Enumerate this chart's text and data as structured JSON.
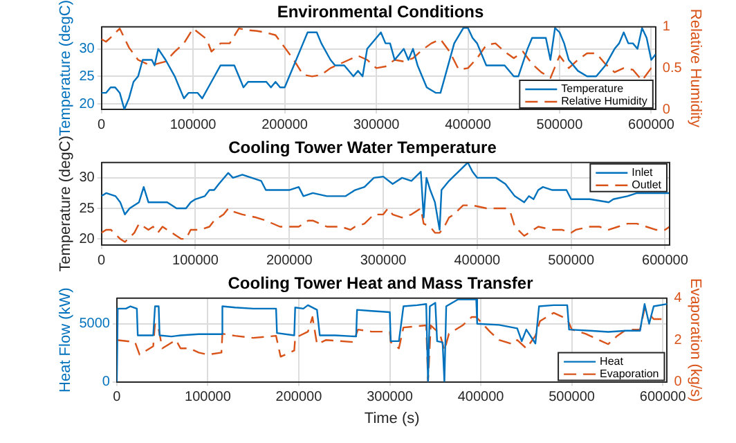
{
  "chart_data": [
    {
      "type": "line",
      "title": "Environmental Conditions",
      "ylabel": "Temperature (degC)",
      "y2label": "Relative Humidity",
      "xlim": [
        0,
        604800
      ],
      "xticks": [
        0,
        100000,
        200000,
        300000,
        400000,
        500000,
        600000
      ],
      "ylim": [
        19,
        34
      ],
      "yticks": [
        20,
        25,
        30
      ],
      "y2lim": [
        0,
        1
      ],
      "y2ticks": [
        0,
        0.5,
        1
      ],
      "grid": true,
      "legend": "bottom right",
      "series": [
        {
          "name": "Temperature",
          "color": "#0072bd",
          "line_style": "solid",
          "x": [
            0,
            5000,
            10000,
            15000,
            20000,
            25000,
            30000,
            35000,
            40000,
            45000,
            55000,
            58000,
            62000,
            70000,
            80000,
            85000,
            90000,
            95000,
            105000,
            110000,
            120000,
            130000,
            145000,
            150000,
            155000,
            160000,
            180000,
            185000,
            190000,
            195000,
            200000,
            210000,
            220000,
            225000,
            235000,
            240000,
            250000,
            255000,
            265000,
            275000,
            280000,
            285000,
            290000,
            300000,
            305000,
            310000,
            315000,
            320000,
            325000,
            330000,
            335000,
            340000,
            345000,
            355000,
            365000,
            370000,
            375000,
            385000,
            395000,
            400000,
            405000,
            410000,
            420000,
            440000,
            450000,
            455000,
            465000,
            470000,
            485000,
            490000,
            495000,
            500000,
            505000,
            510000,
            520000,
            530000,
            540000,
            550000,
            560000,
            565000,
            570000,
            575000,
            580000,
            585000,
            590000,
            595000,
            600000,
            604800
          ],
          "values": [
            22,
            22,
            23,
            23,
            22,
            19,
            21,
            24,
            25,
            28,
            28,
            27,
            30,
            28,
            25,
            23,
            21,
            22,
            22,
            21,
            24,
            27,
            27,
            25,
            23,
            24,
            24,
            23,
            24,
            23,
            23,
            27,
            31,
            33,
            33,
            31,
            28,
            27,
            27,
            25,
            26,
            25,
            30,
            32,
            33,
            31,
            31,
            28,
            29,
            30,
            28,
            30,
            27,
            23,
            22,
            22,
            25,
            31,
            33.8,
            33.8,
            32,
            31,
            27,
            27,
            25,
            25,
            30,
            32,
            32,
            28,
            33.8,
            33,
            31,
            28,
            26,
            25,
            25,
            27,
            30,
            31,
            33,
            31,
            31,
            30,
            33.8,
            32,
            28,
            29
          ]
        },
        {
          "name": "Relative Humidity",
          "color": "#d95319",
          "line_style": "dashed",
          "axis": "y2",
          "x": [
            0,
            5000,
            10000,
            20000,
            30000,
            40000,
            50000,
            60000,
            70000,
            80000,
            90000,
            100000,
            115000,
            120000,
            130000,
            140000,
            150000,
            160000,
            170000,
            180000,
            190000,
            200000,
            210000,
            220000,
            230000,
            240000,
            250000,
            260000,
            270000,
            280000,
            290000,
            300000,
            310000,
            320000,
            330000,
            340000,
            350000,
            360000,
            370000,
            380000,
            390000,
            400000,
            410000,
            420000,
            430000,
            440000,
            450000,
            460000,
            470000,
            480000,
            490000,
            500000,
            510000,
            520000,
            530000,
            540000,
            550000,
            560000,
            570000,
            580000,
            590000,
            600000,
            604800
          ],
          "values": [
            0.85,
            0.82,
            0.87,
            0.98,
            0.75,
            0.6,
            0.55,
            0.55,
            0.58,
            0.7,
            0.8,
            0.98,
            0.85,
            0.7,
            0.8,
            0.8,
            0.98,
            0.96,
            0.95,
            0.93,
            0.9,
            0.75,
            0.6,
            0.42,
            0.4,
            0.42,
            0.5,
            0.55,
            0.6,
            0.65,
            0.6,
            0.5,
            0.52,
            0.6,
            0.58,
            0.62,
            0.72,
            0.8,
            0.85,
            0.7,
            0.48,
            0.5,
            0.62,
            0.78,
            0.8,
            0.7,
            0.62,
            0.7,
            0.55,
            0.45,
            0.38,
            0.65,
            0.5,
            0.6,
            0.68,
            0.68,
            0.55,
            0.45,
            0.5,
            0.48,
            0.35,
            0.5,
            0.5
          ]
        }
      ]
    },
    {
      "type": "line",
      "title": "Cooling Tower Water Temperature",
      "ylabel": "Temperature (degC)",
      "xlim": [
        0,
        604800
      ],
      "xticks": [
        0,
        100000,
        200000,
        300000,
        400000,
        500000,
        600000
      ],
      "ylim": [
        19,
        32.5
      ],
      "yticks": [
        20,
        25,
        30
      ],
      "grid": true,
      "legend": "top right",
      "series": [
        {
          "name": "Inlet",
          "color": "#0072bd",
          "line_style": "solid",
          "x": [
            0,
            5000,
            15000,
            20000,
            25000,
            30000,
            40000,
            45000,
            50000,
            60000,
            70000,
            80000,
            90000,
            95000,
            100000,
            110000,
            115000,
            120000,
            125000,
            135000,
            140000,
            150000,
            160000,
            170000,
            175000,
            190000,
            200000,
            210000,
            215000,
            225000,
            240000,
            260000,
            270000,
            280000,
            290000,
            300000,
            310000,
            320000,
            330000,
            340000,
            343000,
            346000,
            350000,
            355000,
            360000,
            362000,
            370000,
            380000,
            390000,
            395000,
            400000,
            420000,
            430000,
            440000,
            450000,
            455000,
            460000,
            465000,
            470000,
            480000,
            495000,
            500000,
            520000,
            540000,
            545000,
            560000,
            570000,
            580000,
            590000,
            600000,
            604800
          ],
          "values": [
            27,
            27.5,
            27,
            26,
            24,
            25,
            26,
            28.5,
            26,
            26,
            26,
            25,
            25,
            26,
            26.5,
            27,
            28,
            28,
            29,
            30.8,
            30,
            30.5,
            30,
            29.5,
            28,
            28,
            28,
            28.5,
            27,
            27.5,
            27,
            27,
            28,
            28.5,
            30,
            30.2,
            29,
            30,
            29.5,
            31,
            23.5,
            30,
            28,
            26,
            21.5,
            28,
            29.5,
            31,
            32.5,
            31,
            30,
            30,
            29,
            27,
            26,
            27,
            26.5,
            28,
            28.5,
            28,
            28,
            26.5,
            26.5,
            26,
            26.5,
            27,
            27.5,
            27.5,
            27.5,
            27.5,
            27.5
          ]
        },
        {
          "name": "Outlet",
          "color": "#d95319",
          "line_style": "dashed",
          "x": [
            0,
            5000,
            10000,
            20000,
            25000,
            35000,
            40000,
            45000,
            50000,
            55000,
            60000,
            65000,
            75000,
            85000,
            90000,
            95000,
            105000,
            115000,
            120000,
            130000,
            135000,
            140000,
            150000,
            165000,
            175000,
            190000,
            210000,
            220000,
            225000,
            240000,
            255000,
            265000,
            270000,
            280000,
            290000,
            300000,
            305000,
            310000,
            320000,
            330000,
            340000,
            343000,
            350000,
            355000,
            360000,
            365000,
            370000,
            375000,
            385000,
            395000,
            410000,
            430000,
            435000,
            440000,
            450000,
            460000,
            465000,
            480000,
            490000,
            500000,
            505000,
            520000,
            530000,
            540000,
            550000,
            560000,
            570000,
            580000,
            590000,
            600000,
            604800
          ],
          "values": [
            21,
            21.5,
            21.5,
            20,
            19.5,
            21,
            22.5,
            22,
            21.5,
            22,
            21,
            22,
            21,
            20,
            20,
            21.5,
            21.5,
            22,
            23,
            24,
            25,
            24.5,
            24,
            23.5,
            23,
            22,
            22,
            23,
            23,
            22,
            22,
            21.5,
            22,
            22.5,
            24,
            24,
            25,
            24,
            23.5,
            24,
            25,
            22.5,
            22,
            21,
            21,
            22,
            23.5,
            24,
            25.5,
            25.5,
            25,
            25,
            24.5,
            22,
            20.5,
            21.5,
            22,
            21.5,
            21.5,
            21,
            21.5,
            22,
            22,
            21.5,
            22,
            22.5,
            22.5,
            22,
            21.5,
            21.5,
            22
          ]
        }
      ]
    },
    {
      "type": "line",
      "title": "Cooling Tower Heat and Mass Transfer",
      "xlabel": "Time (s)",
      "ylabel": "Heat Flow (kW)",
      "y2label": "Evaporation (kg/s)",
      "xlim": [
        0,
        604800
      ],
      "xticks": [
        0,
        100000,
        200000,
        300000,
        400000,
        500000,
        600000
      ],
      "ylim": [
        0,
        7200
      ],
      "yticks": [
        0,
        5000
      ],
      "y2lim": [
        0,
        4
      ],
      "y2ticks": [
        0,
        2,
        4
      ],
      "grid": true,
      "legend": "bottom right",
      "series": [
        {
          "name": "Heat",
          "color": "#0072bd",
          "line_style": "solid",
          "x": [
            0,
            1000,
            10000,
            15000,
            22000,
            23000,
            40000,
            42000,
            46000,
            47000,
            60000,
            70000,
            90000,
            115000,
            116000,
            130000,
            150000,
            175000,
            176000,
            195000,
            196000,
            205000,
            210000,
            220000,
            223000,
            240000,
            263000,
            264000,
            280000,
            300000,
            301000,
            310000,
            315000,
            330000,
            340000,
            342000,
            344000,
            350000,
            352000,
            358000,
            360000,
            362000,
            375000,
            395000,
            396000,
            420000,
            440000,
            445000,
            450000,
            460000,
            464000,
            480000,
            495000,
            497000,
            520000,
            540000,
            560000,
            575000,
            580000,
            585000,
            590000,
            604800
          ],
          "values": [
            0,
            6300,
            6300,
            6500,
            6300,
            4000,
            4000,
            6500,
            6500,
            4000,
            3900,
            4000,
            4100,
            4100,
            6500,
            6400,
            6300,
            6300,
            4200,
            4000,
            6400,
            6300,
            6600,
            6200,
            4000,
            4000,
            3900,
            6200,
            6100,
            6000,
            3500,
            3500,
            6500,
            6600,
            6700,
            0,
            6500,
            6800,
            3500,
            3400,
            0,
            6500,
            7100,
            7100,
            5000,
            4900,
            4600,
            3500,
            4500,
            3300,
            6500,
            6600,
            6600,
            4500,
            4400,
            4300,
            4400,
            4400,
            6700,
            5000,
            6500,
            6700
          ]
        },
        {
          "name": "Evaporation",
          "color": "#d95319",
          "line_style": "dashed",
          "axis": "y2",
          "x": [
            0,
            20000,
            25000,
            40000,
            42000,
            46000,
            50000,
            65000,
            70000,
            80000,
            90000,
            100000,
            115000,
            116000,
            130000,
            150000,
            175000,
            180000,
            195000,
            196000,
            210000,
            215000,
            220000,
            230000,
            260000,
            265000,
            280000,
            300000,
            301000,
            310000,
            315000,
            340000,
            342000,
            345000,
            355000,
            360000,
            365000,
            380000,
            390000,
            395000,
            410000,
            420000,
            435000,
            440000,
            450000,
            460000,
            465000,
            480000,
            495000,
            500000,
            515000,
            530000,
            540000,
            550000,
            560000,
            575000,
            580000,
            590000,
            604800
          ],
          "values": [
            2,
            1.9,
            1.3,
            1.7,
            2.8,
            2.5,
            1.6,
            2,
            1.6,
            1.6,
            1.4,
            1.3,
            1.4,
            2.3,
            2.2,
            2.1,
            2.2,
            1.2,
            1.5,
            2.1,
            2.4,
            3.1,
            1.8,
            2,
            1.9,
            2.5,
            2.4,
            2.4,
            1.9,
            1.6,
            2.6,
            2.7,
            0,
            2.7,
            2.3,
            1.5,
            2.3,
            2.7,
            3.1,
            3.1,
            2.4,
            2,
            1.8,
            2,
            1.6,
            2.2,
            2.9,
            3.3,
            3,
            2.5,
            2.3,
            2,
            1.8,
            2.2,
            2.5,
            2.5,
            3.5,
            3,
            3
          ]
        }
      ]
    }
  ]
}
